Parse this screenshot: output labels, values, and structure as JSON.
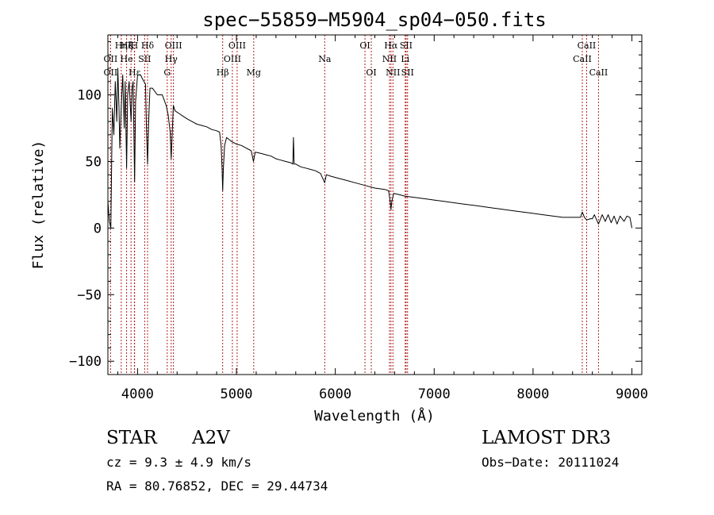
{
  "chart_data": {
    "type": "line",
    "title": "spec−55859−M5904_sp04−050.fits",
    "xlabel": "Wavelength (Å)",
    "ylabel": "Flux (relative)",
    "xlim": [
      3700,
      9100
    ],
    "ylim": [
      -110,
      145
    ],
    "xticks": [
      4000,
      5000,
      6000,
      7000,
      8000,
      9000
    ],
    "yticks": [
      100,
      50,
      0,
      -50,
      -100
    ],
    "ytick_labels": [
      "100",
      "50",
      "0",
      "−50",
      "−100"
    ],
    "grid": false,
    "series": [
      {
        "name": "spectrum",
        "points": [
          [
            3700,
            20
          ],
          [
            3715,
            5
          ],
          [
            3730,
            0
          ],
          [
            3745,
            90
          ],
          [
            3760,
            70
          ],
          [
            3775,
            110
          ],
          [
            3790,
            80
          ],
          [
            3800,
            120
          ],
          [
            3812,
            90
          ],
          [
            3820,
            60
          ],
          [
            3835,
            90
          ],
          [
            3850,
            115
          ],
          [
            3865,
            75
          ],
          [
            3875,
            110
          ],
          [
            3889,
            45
          ],
          [
            3900,
            100
          ],
          [
            3915,
            110
          ],
          [
            3934,
            80
          ],
          [
            3945,
            105
          ],
          [
            3955,
            110
          ],
          [
            3970,
            35
          ],
          [
            3980,
            95
          ],
          [
            4000,
            115
          ],
          [
            4030,
            115
          ],
          [
            4050,
            112
          ],
          [
            4080,
            108
          ],
          [
            4090,
            75
          ],
          [
            4101,
            48
          ],
          [
            4112,
            78
          ],
          [
            4125,
            105
          ],
          [
            4150,
            105
          ],
          [
            4200,
            100
          ],
          [
            4250,
            100
          ],
          [
            4290,
            92
          ],
          [
            4310,
            85
          ],
          [
            4330,
            72
          ],
          [
            4340,
            52
          ],
          [
            4350,
            70
          ],
          [
            4362,
            92
          ],
          [
            4380,
            88
          ],
          [
            4420,
            86
          ],
          [
            4460,
            84
          ],
          [
            4500,
            82
          ],
          [
            4550,
            80
          ],
          [
            4600,
            78
          ],
          [
            4650,
            77
          ],
          [
            4700,
            76
          ],
          [
            4750,
            74
          ],
          [
            4800,
            73
          ],
          [
            4830,
            72
          ],
          [
            4845,
            62
          ],
          [
            4855,
            45
          ],
          [
            4861,
            28
          ],
          [
            4868,
            45
          ],
          [
            4880,
            62
          ],
          [
            4900,
            68
          ],
          [
            4950,
            65
          ],
          [
            5000,
            63
          ],
          [
            5050,
            62
          ],
          [
            5100,
            60
          ],
          [
            5150,
            58
          ],
          [
            5172,
            50
          ],
          [
            5190,
            57
          ],
          [
            5250,
            56
          ],
          [
            5300,
            55
          ],
          [
            5350,
            54
          ],
          [
            5400,
            52
          ],
          [
            5450,
            51
          ],
          [
            5500,
            50
          ],
          [
            5550,
            49
          ],
          [
            5570,
            48
          ],
          [
            5577,
            68
          ],
          [
            5584,
            48
          ],
          [
            5600,
            48
          ],
          [
            5650,
            46
          ],
          [
            5700,
            45
          ],
          [
            5750,
            44
          ],
          [
            5800,
            43
          ],
          [
            5850,
            41
          ],
          [
            5893,
            34
          ],
          [
            5910,
            40
          ],
          [
            5950,
            39
          ],
          [
            6000,
            38
          ],
          [
            6100,
            36
          ],
          [
            6200,
            34
          ],
          [
            6300,
            32
          ],
          [
            6400,
            30
          ],
          [
            6500,
            29
          ],
          [
            6540,
            28
          ],
          [
            6555,
            20
          ],
          [
            6563,
            14
          ],
          [
            6572,
            20
          ],
          [
            6590,
            26
          ],
          [
            6650,
            25
          ],
          [
            6700,
            24
          ],
          [
            6800,
            23
          ],
          [
            6900,
            22
          ],
          [
            7000,
            21
          ],
          [
            7100,
            20
          ],
          [
            7200,
            19
          ],
          [
            7300,
            18
          ],
          [
            7400,
            17
          ],
          [
            7500,
            16
          ],
          [
            7600,
            15
          ],
          [
            7700,
            14
          ],
          [
            7800,
            13
          ],
          [
            7900,
            12
          ],
          [
            8000,
            11
          ],
          [
            8100,
            10
          ],
          [
            8200,
            9
          ],
          [
            8300,
            8
          ],
          [
            8400,
            8
          ],
          [
            8480,
            8
          ],
          [
            8498,
            12
          ],
          [
            8520,
            8
          ],
          [
            8542,
            6
          ],
          [
            8580,
            7
          ],
          [
            8600,
            7
          ],
          [
            8620,
            10
          ],
          [
            8662,
            3
          ],
          [
            8700,
            10
          ],
          [
            8730,
            5
          ],
          [
            8760,
            10
          ],
          [
            8790,
            4
          ],
          [
            8820,
            9
          ],
          [
            8850,
            3
          ],
          [
            8880,
            9
          ],
          [
            8920,
            5
          ],
          [
            8950,
            9
          ],
          [
            8980,
            8
          ],
          [
            9000,
            0
          ]
        ]
      }
    ],
    "lines": [
      {
        "name": "OII",
        "w": 3727,
        "row": 2,
        "dx": 0
      },
      {
        "name": "OII",
        "w": 3727,
        "row": 3,
        "dx": 0
      },
      {
        "name": "Hη",
        "w": 3835,
        "row": 1,
        "dx": 0
      },
      {
        "name": "Hζ",
        "w": 3889,
        "row": 1,
        "dx": 0
      },
      {
        "name": "He",
        "w": 3889,
        "row": 2,
        "dx": 0
      },
      {
        "name": "Hε",
        "w": 3970,
        "row": 3,
        "dx": 0
      },
      {
        "name": "K",
        "w": 3934,
        "row": 1,
        "dx": 0
      },
      {
        "name": "H",
        "w": 3968,
        "row": 1,
        "dx": 0
      },
      {
        "name": "Hδ",
        "w": 4101,
        "row": 1,
        "dx": 0
      },
      {
        "name": "SII",
        "w": 4072,
        "row": 2,
        "dx": 0
      },
      {
        "name": "OIII",
        "w": 4363,
        "row": 1,
        "dx": 0
      },
      {
        "name": "Hγ",
        "w": 4340,
        "row": 2,
        "dx": 0
      },
      {
        "name": "G",
        "w": 4300,
        "row": 3,
        "dx": 0
      },
      {
        "name": "Hβ",
        "w": 4861,
        "row": 3,
        "dx": 0
      },
      {
        "name": "OIII",
        "w": 5007,
        "row": 1,
        "dx": 0
      },
      {
        "name": "OIII",
        "w": 4959,
        "row": 2,
        "dx": 0
      },
      {
        "name": "Mg",
        "w": 5175,
        "row": 3,
        "dx": 0
      },
      {
        "name": "Na",
        "w": 5893,
        "row": 2,
        "dx": 0
      },
      {
        "name": "OI",
        "w": 6300,
        "row": 1,
        "dx": 0
      },
      {
        "name": "OI",
        "w": 6364,
        "row": 3,
        "dx": 0
      },
      {
        "name": "Hα",
        "w": 6563,
        "row": 1,
        "dx": 0
      },
      {
        "name": "NII",
        "w": 6548,
        "row": 2,
        "dx": 0
      },
      {
        "name": "NII",
        "w": 6583,
        "row": 3,
        "dx": 0
      },
      {
        "name": "SII",
        "w": 6716,
        "row": 1,
        "dx": 0
      },
      {
        "name": "Li",
        "w": 6707,
        "row": 2,
        "dx": 0
      },
      {
        "name": "SII",
        "w": 6731,
        "row": 3,
        "dx": 0
      },
      {
        "name": "CaII",
        "w": 8498,
        "row": 2,
        "dx": 0
      },
      {
        "name": "CaII",
        "w": 8542,
        "row": 1,
        "dx": 0
      },
      {
        "name": "CaII",
        "w": 8662,
        "row": 3,
        "dx": 0
      }
    ]
  },
  "info": {
    "object_class": "STAR",
    "subclass": "A2V",
    "survey": "LAMOST DR3",
    "redshift": "cz = 9.3 ± 4.9 km/s",
    "obs_date": "Obs−Date: 20111024",
    "coords": "RA =  80.76852, DEC =  29.44734"
  },
  "colors": {
    "spectrum": "#000000",
    "line_marker": "#b02020",
    "axis": "#000000"
  }
}
